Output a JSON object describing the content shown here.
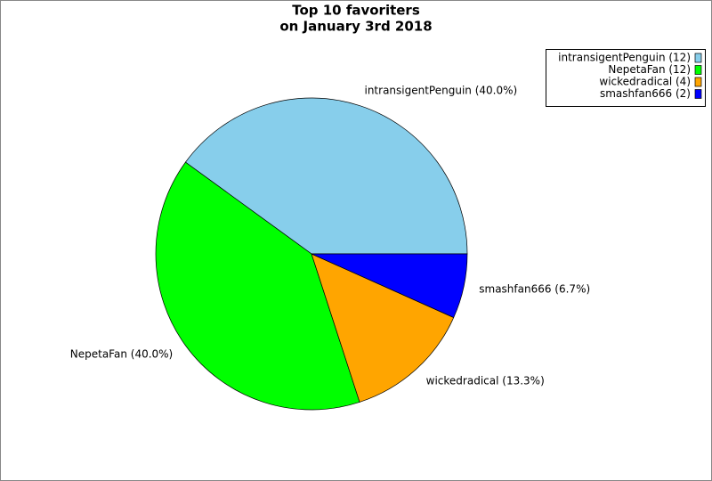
{
  "chart_data": {
    "type": "pie",
    "title": "Top 10 favoriters",
    "subtitle": "on January 3rd 2018",
    "categories": [
      "intransigentPenguin",
      "NepetaFan",
      "wickedradical",
      "smashfan666"
    ],
    "values": [
      40.0,
      40.0,
      13.3,
      6.7
    ],
    "value_labels": [
      "intransigentPenguin (40.0%)",
      "NepetaFan (40.0%)",
      "wickedradical (13.3%)",
      "smashfan666 (6.7%)"
    ],
    "counts": [
      12,
      12,
      4,
      2
    ],
    "legend_labels": [
      "intransigentPenguin (12)",
      "NepetaFan (12)",
      "wickedradical (4)",
      "smashfan666 (2)"
    ],
    "colors": [
      "#87ceeb",
      "#00ff00",
      "#ffa500",
      "#0000ff"
    ],
    "legend": "top-right"
  }
}
